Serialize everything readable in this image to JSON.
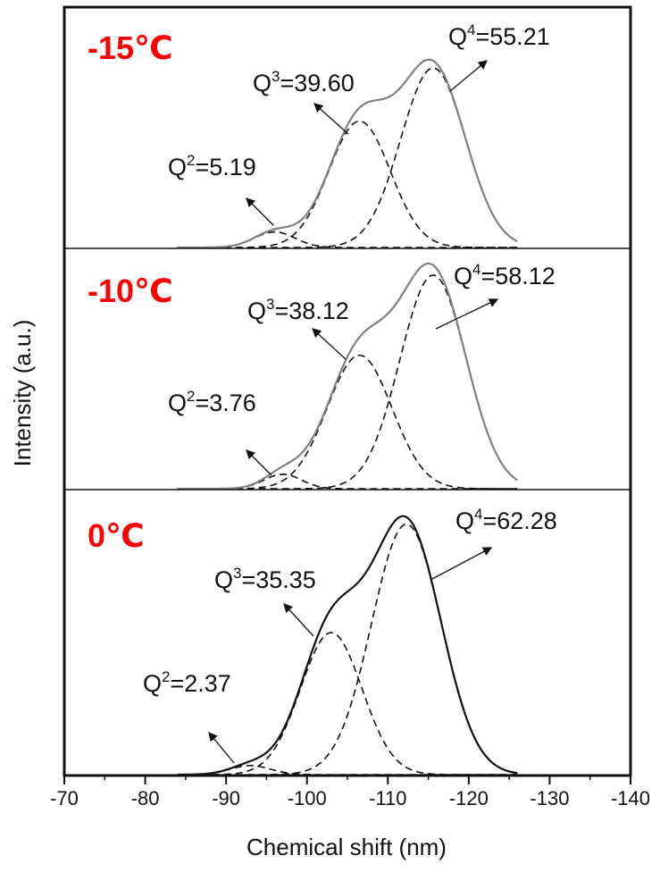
{
  "chart_data": {
    "type": "line",
    "title": "",
    "xlabel": "Chemical shift (nm)",
    "ylabel": "Intensity (a.u.)",
    "xlim": [
      -70,
      -140
    ],
    "x_ticks": [
      -70,
      -80,
      -90,
      -100,
      -110,
      -120,
      -130,
      -140
    ],
    "x_tick_labels": [
      "-70",
      "-80",
      "-90",
      "-100",
      "-110",
      "-120",
      "-130",
      "-140"
    ],
    "grid": false,
    "legend": "none",
    "panels": [
      {
        "label": "-15℃",
        "fit_color": "#808080",
        "peaks": [
          {
            "name": "Q2",
            "label_base": "Q",
            "label_sup": "2",
            "label_value": "=5.19",
            "center": -96,
            "height": 0.085,
            "sigma": 2.5
          },
          {
            "name": "Q3",
            "label_base": "Q",
            "label_sup": "3",
            "label_value": "=39.60",
            "center": -106.5,
            "height": 0.69,
            "sigma": 3.8
          },
          {
            "name": "Q4",
            "label_base": "Q",
            "label_sup": "4",
            "label_value": "=55.21",
            "center": -115.6,
            "height": 0.98,
            "sigma": 4.0
          }
        ]
      },
      {
        "label": "-10℃",
        "fit_color": "#808080",
        "peaks": [
          {
            "name": "Q2",
            "label_base": "Q",
            "label_sup": "2",
            "label_value": "=3.76",
            "center": -97,
            "height": 0.065,
            "sigma": 2.3
          },
          {
            "name": "Q3",
            "label_base": "Q",
            "label_sup": "3",
            "label_value": "=38.12",
            "center": -106.5,
            "height": 0.6,
            "sigma": 4.0
          },
          {
            "name": "Q4",
            "label_base": "Q",
            "label_sup": "4",
            "label_value": "=58.12",
            "center": -115.6,
            "height": 0.96,
            "sigma": 4.1
          }
        ]
      },
      {
        "label": "0℃",
        "fit_color": "#111111",
        "peaks": [
          {
            "name": "Q2",
            "label_base": "Q",
            "label_sup": "2",
            "label_value": "=2.37",
            "center": -93,
            "height": 0.035,
            "sigma": 2.5
          },
          {
            "name": "Q3",
            "label_base": "Q",
            "label_sup": "3",
            "label_value": "=35.35",
            "center": -103,
            "height": 0.55,
            "sigma": 3.8
          },
          {
            "name": "Q4",
            "label_base": "Q",
            "label_sup": "4",
            "label_value": "=62.28",
            "center": -112.3,
            "height": 0.97,
            "sigma": 4.3
          }
        ]
      }
    ]
  }
}
